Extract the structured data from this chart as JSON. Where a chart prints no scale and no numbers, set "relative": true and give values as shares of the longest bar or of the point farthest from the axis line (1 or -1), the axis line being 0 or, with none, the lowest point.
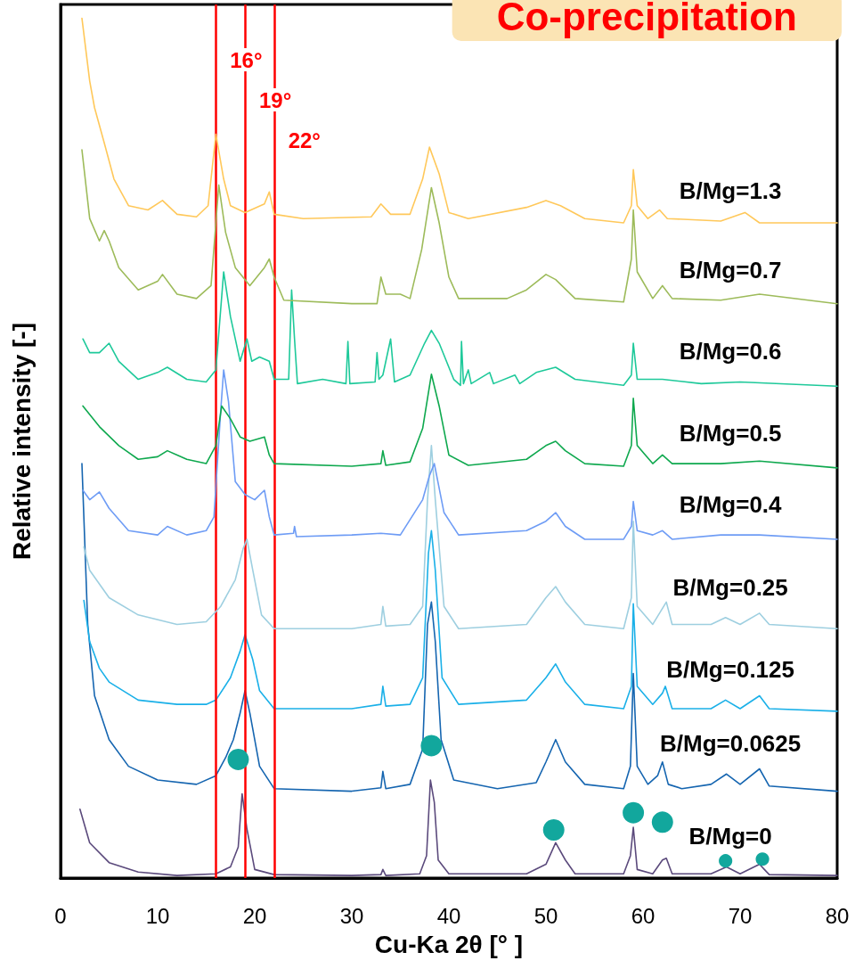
{
  "chart_data": {
    "type": "line",
    "relative": true,
    "title": "Co-precipitation",
    "xlabel": "Cu-Ka 2θ [° ]",
    "ylabel": "Relative intensity [-]",
    "xlim": [
      0,
      80
    ],
    "xticks": [
      0,
      10,
      20,
      30,
      40,
      50,
      60,
      70,
      80
    ],
    "grid": false,
    "legend": false,
    "marker": "none",
    "line_style": "solid",
    "tick_labels": "x",
    "ref_lines": [
      {
        "axis": "x",
        "value": 16,
        "label": "16°",
        "color": "#ff0000"
      },
      {
        "axis": "x",
        "value": 19,
        "label": "19°",
        "color": "#ff0000"
      },
      {
        "axis": "x",
        "value": 22,
        "label": "22°",
        "color": "#ff0000"
      }
    ],
    "series": [
      {
        "name": "B/Mg=0",
        "color": "#5b4a7c",
        "x": [
          2,
          3,
          5,
          8,
          12,
          16,
          17.5,
          18.3,
          18.7,
          19.2,
          20,
          22,
          30,
          33,
          33.2,
          33.5,
          37,
          37.7,
          38.1,
          38.5,
          38.9,
          40,
          48,
          50,
          51,
          52,
          53,
          58,
          58.7,
          59,
          59.4,
          61,
          62,
          62.4,
          63,
          67,
          68.6,
          70,
          72,
          72.5,
          73,
          80
        ],
        "values": [
          0.08,
          0.041,
          0.018,
          0.007,
          0.003,
          0.005,
          0.013,
          0.036,
          0.098,
          0.057,
          0.01,
          0.004,
          0.003,
          0.004,
          0.01,
          0.003,
          0.005,
          0.026,
          0.114,
          0.088,
          0.021,
          0.005,
          0.005,
          0.016,
          0.041,
          0.021,
          0.005,
          0.005,
          0.026,
          0.059,
          0.01,
          0.005,
          0.021,
          0.023,
          0.005,
          0.005,
          0.013,
          0.005,
          0.016,
          0.01,
          0.004,
          0.003
        ]
      },
      {
        "name": "B/Mg=0.0625",
        "color": "#1565b0",
        "x": [
          2.2,
          2.8,
          3.5,
          5,
          7,
          10,
          14,
          16,
          17,
          17.8,
          18.5,
          19,
          19.5,
          20.5,
          22,
          30,
          33,
          33.2,
          33.5,
          36,
          37.3,
          37.8,
          38.2,
          38.6,
          39.2,
          40.5,
          45,
          49,
          50,
          51,
          52,
          54,
          58,
          58.7,
          59,
          59.4,
          60.5,
          61.5,
          62,
          62.6,
          64,
          67,
          68.6,
          70,
          72,
          73,
          80
        ],
        "values": [
          0.482,
          0.295,
          0.212,
          0.161,
          0.13,
          0.114,
          0.109,
          0.119,
          0.14,
          0.161,
          0.192,
          0.218,
          0.192,
          0.13,
          0.104,
          0.101,
          0.105,
          0.124,
          0.104,
          0.109,
          0.15,
          0.295,
          0.321,
          0.275,
          0.161,
          0.114,
          0.104,
          0.111,
          0.135,
          0.161,
          0.135,
          0.109,
          0.104,
          0.13,
          0.238,
          0.13,
          0.109,
          0.119,
          0.135,
          0.109,
          0.104,
          0.109,
          0.121,
          0.109,
          0.127,
          0.107,
          0.101
        ]
      },
      {
        "name": "B/Mg=0.125",
        "color": "#1ab0e8",
        "x": [
          2.4,
          3,
          4,
          5,
          8,
          12,
          15,
          16,
          17.5,
          18.5,
          19,
          19.8,
          20.5,
          22,
          30,
          33,
          33.2,
          33.5,
          36,
          37.3,
          37.9,
          38.2,
          38.6,
          39.3,
          41,
          48,
          50,
          51,
          52,
          54,
          58,
          58.8,
          59,
          59.4,
          61,
          62,
          62.3,
          63,
          67,
          68.5,
          70,
          72,
          73,
          80
        ],
        "values": [
          0.323,
          0.275,
          0.244,
          0.228,
          0.207,
          0.202,
          0.202,
          0.207,
          0.233,
          0.264,
          0.283,
          0.254,
          0.218,
          0.197,
          0.197,
          0.202,
          0.223,
          0.2,
          0.202,
          0.233,
          0.378,
          0.404,
          0.358,
          0.233,
          0.202,
          0.207,
          0.233,
          0.249,
          0.228,
          0.202,
          0.197,
          0.223,
          0.319,
          0.223,
          0.202,
          0.215,
          0.223,
          0.197,
          0.197,
          0.207,
          0.197,
          0.212,
          0.197,
          0.194
        ]
      },
      {
        "name": "B/Mg=0.25",
        "color": "#9ecfe0",
        "x": [
          2.4,
          3,
          5,
          8,
          12,
          15,
          16.5,
          18,
          18.8,
          19.2,
          19.8,
          20.7,
          22,
          30,
          33,
          33.2,
          33.5,
          36,
          37.3,
          37.8,
          38.2,
          38.6,
          39.5,
          41,
          48,
          50,
          51,
          52,
          54,
          58,
          58.8,
          59,
          59.4,
          61,
          62.4,
          63,
          67,
          68.5,
          70,
          72,
          73,
          80
        ],
        "values": [
          0.385,
          0.358,
          0.326,
          0.306,
          0.295,
          0.298,
          0.316,
          0.347,
          0.383,
          0.394,
          0.358,
          0.306,
          0.29,
          0.29,
          0.295,
          0.316,
          0.293,
          0.295,
          0.316,
          0.44,
          0.503,
          0.44,
          0.316,
          0.29,
          0.295,
          0.326,
          0.339,
          0.321,
          0.295,
          0.29,
          0.326,
          0.415,
          0.316,
          0.295,
          0.321,
          0.295,
          0.295,
          0.303,
          0.295,
          0.308,
          0.295,
          0.29
        ]
      },
      {
        "name": "B/Mg=0.4",
        "color": "#6e9cf5",
        "x": [
          2.3,
          3,
          4,
          5,
          7,
          10,
          11,
          13,
          15,
          15.8,
          16.5,
          16.8,
          17.3,
          18,
          19,
          20,
          21,
          21.5,
          22,
          24,
          24.1,
          24.3,
          30,
          33,
          35,
          37.3,
          38,
          38.5,
          39.5,
          41,
          48,
          50,
          51,
          52,
          54,
          58,
          58.8,
          59,
          59.4,
          61,
          62,
          63,
          68,
          72,
          80
        ],
        "values": [
          0.451,
          0.44,
          0.449,
          0.43,
          0.404,
          0.399,
          0.409,
          0.399,
          0.404,
          0.42,
          0.544,
          0.591,
          0.554,
          0.461,
          0.446,
          0.44,
          0.451,
          0.42,
          0.399,
          0.401,
          0.409,
          0.397,
          0.399,
          0.401,
          0.399,
          0.44,
          0.468,
          0.482,
          0.425,
          0.399,
          0.404,
          0.415,
          0.425,
          0.409,
          0.394,
          0.394,
          0.409,
          0.438,
          0.404,
          0.399,
          0.404,
          0.394,
          0.399,
          0.399,
          0.394
        ]
      },
      {
        "name": "B/Mg=0.5",
        "color": "#0ea84e",
        "x": [
          2.3,
          3,
          4,
          6,
          8,
          10,
          11,
          13,
          15,
          16,
          16.6,
          17.5,
          18.5,
          19.5,
          21,
          21.5,
          22,
          30,
          33,
          33.2,
          33.5,
          36,
          37.3,
          38.2,
          39,
          40,
          42,
          48,
          50,
          51,
          52,
          54,
          58,
          58.8,
          59,
          59.4,
          61,
          62,
          63,
          68,
          72,
          80
        ],
        "values": [
          0.549,
          0.539,
          0.525,
          0.503,
          0.487,
          0.49,
          0.497,
          0.487,
          0.482,
          0.503,
          0.549,
          0.534,
          0.513,
          0.508,
          0.513,
          0.492,
          0.482,
          0.479,
          0.482,
          0.497,
          0.48,
          0.484,
          0.523,
          0.586,
          0.549,
          0.492,
          0.48,
          0.487,
          0.503,
          0.508,
          0.497,
          0.482,
          0.479,
          0.503,
          0.558,
          0.503,
          0.482,
          0.492,
          0.482,
          0.482,
          0.485,
          0.477
        ]
      },
      {
        "name": "B/Mg=0.6",
        "color": "#1ec99a",
        "x": [
          2.3,
          3,
          4,
          5,
          6,
          8,
          10,
          11,
          13,
          15,
          16,
          16.8,
          17.5,
          18.5,
          19.2,
          19.7,
          20.5,
          21.5,
          22,
          23.5,
          23.8,
          24.1,
          24.4,
          27,
          29.4,
          29.6,
          29.8,
          32.4,
          32.6,
          32.8,
          33.2,
          34,
          34.4,
          36,
          37.5,
          38.2,
          39,
          40.5,
          41.2,
          41.3,
          41.5,
          42,
          42.3,
          44.2,
          44.6,
          46.8,
          47.3,
          49,
          51,
          53,
          58,
          58.8,
          59,
          59.4,
          62,
          66,
          70,
          80
        ],
        "values": [
          0.627,
          0.611,
          0.611,
          0.622,
          0.601,
          0.58,
          0.588,
          0.594,
          0.58,
          0.577,
          0.591,
          0.705,
          0.653,
          0.601,
          0.627,
          0.601,
          0.606,
          0.601,
          0.58,
          0.58,
          0.684,
          0.627,
          0.575,
          0.58,
          0.575,
          0.624,
          0.575,
          0.577,
          0.611,
          0.58,
          0.585,
          0.627,
          0.577,
          0.585,
          0.622,
          0.637,
          0.622,
          0.58,
          0.573,
          0.624,
          0.575,
          0.591,
          0.575,
          0.588,
          0.575,
          0.585,
          0.575,
          0.588,
          0.594,
          0.58,
          0.573,
          0.585,
          0.622,
          0.58,
          0.58,
          0.575,
          0.577,
          0.572
        ]
      },
      {
        "name": "B/Mg=0.7",
        "color": "#9dbb5a",
        "x": [
          2.2,
          3,
          4,
          4.5,
          5,
          6,
          8,
          10,
          10.5,
          12,
          14,
          15.5,
          16.3,
          17,
          18,
          19.5,
          21,
          21.5,
          22,
          23,
          30,
          32.6,
          33,
          33.5,
          35,
          36,
          37.2,
          38.2,
          39,
          40,
          41,
          46,
          48,
          50,
          51,
          53,
          58,
          58.8,
          59,
          59.4,
          61,
          62,
          63,
          68,
          72,
          80
        ],
        "values": [
          0.847,
          0.767,
          0.741,
          0.753,
          0.741,
          0.71,
          0.684,
          0.694,
          0.702,
          0.679,
          0.674,
          0.689,
          0.806,
          0.751,
          0.71,
          0.689,
          0.71,
          0.72,
          0.699,
          0.672,
          0.668,
          0.668,
          0.699,
          0.679,
          0.679,
          0.674,
          0.731,
          0.803,
          0.762,
          0.699,
          0.674,
          0.674,
          0.684,
          0.702,
          0.696,
          0.674,
          0.67,
          0.72,
          0.777,
          0.705,
          0.674,
          0.689,
          0.674,
          0.672,
          0.679,
          0.668
        ]
      },
      {
        "name": "B/Mg=1.3",
        "color": "#ffc85a",
        "x": [
          2.2,
          3,
          3.5,
          4.5,
          5.5,
          7,
          9,
          10.5,
          12,
          14,
          15.2,
          16,
          16.8,
          17.5,
          19,
          21,
          21.5,
          22,
          25,
          32,
          33,
          34,
          36,
          37.3,
          38,
          39,
          40,
          42,
          48,
          50,
          51.5,
          54,
          58,
          58.8,
          59,
          59.4,
          60.5,
          61.7,
          62.5,
          68,
          70.5,
          72,
          80
        ],
        "values": [
          1,
          0.927,
          0.896,
          0.855,
          0.813,
          0.782,
          0.777,
          0.788,
          0.772,
          0.769,
          0.782,
          0.865,
          0.813,
          0.782,
          0.774,
          0.784,
          0.798,
          0.772,
          0.767,
          0.769,
          0.784,
          0.772,
          0.772,
          0.813,
          0.85,
          0.819,
          0.774,
          0.767,
          0.78,
          0.788,
          0.782,
          0.767,
          0.762,
          0.782,
          0.824,
          0.782,
          0.767,
          0.777,
          0.767,
          0.764,
          0.774,
          0.762,
          0.762
        ]
      },
      {
        "type": "bubble",
        "marker": "circle",
        "color": "#12a79d",
        "x": [
          18.3,
          38.2,
          50.8,
          59.0,
          62.0,
          68.5,
          72.3
        ],
        "values": [
          0.138,
          0.154,
          0.056,
          0.076,
          0.065,
          0.02,
          0.022
        ],
        "sizes": [
          1,
          1,
          1,
          1,
          1,
          0.4,
          0.4
        ]
      }
    ]
  }
}
